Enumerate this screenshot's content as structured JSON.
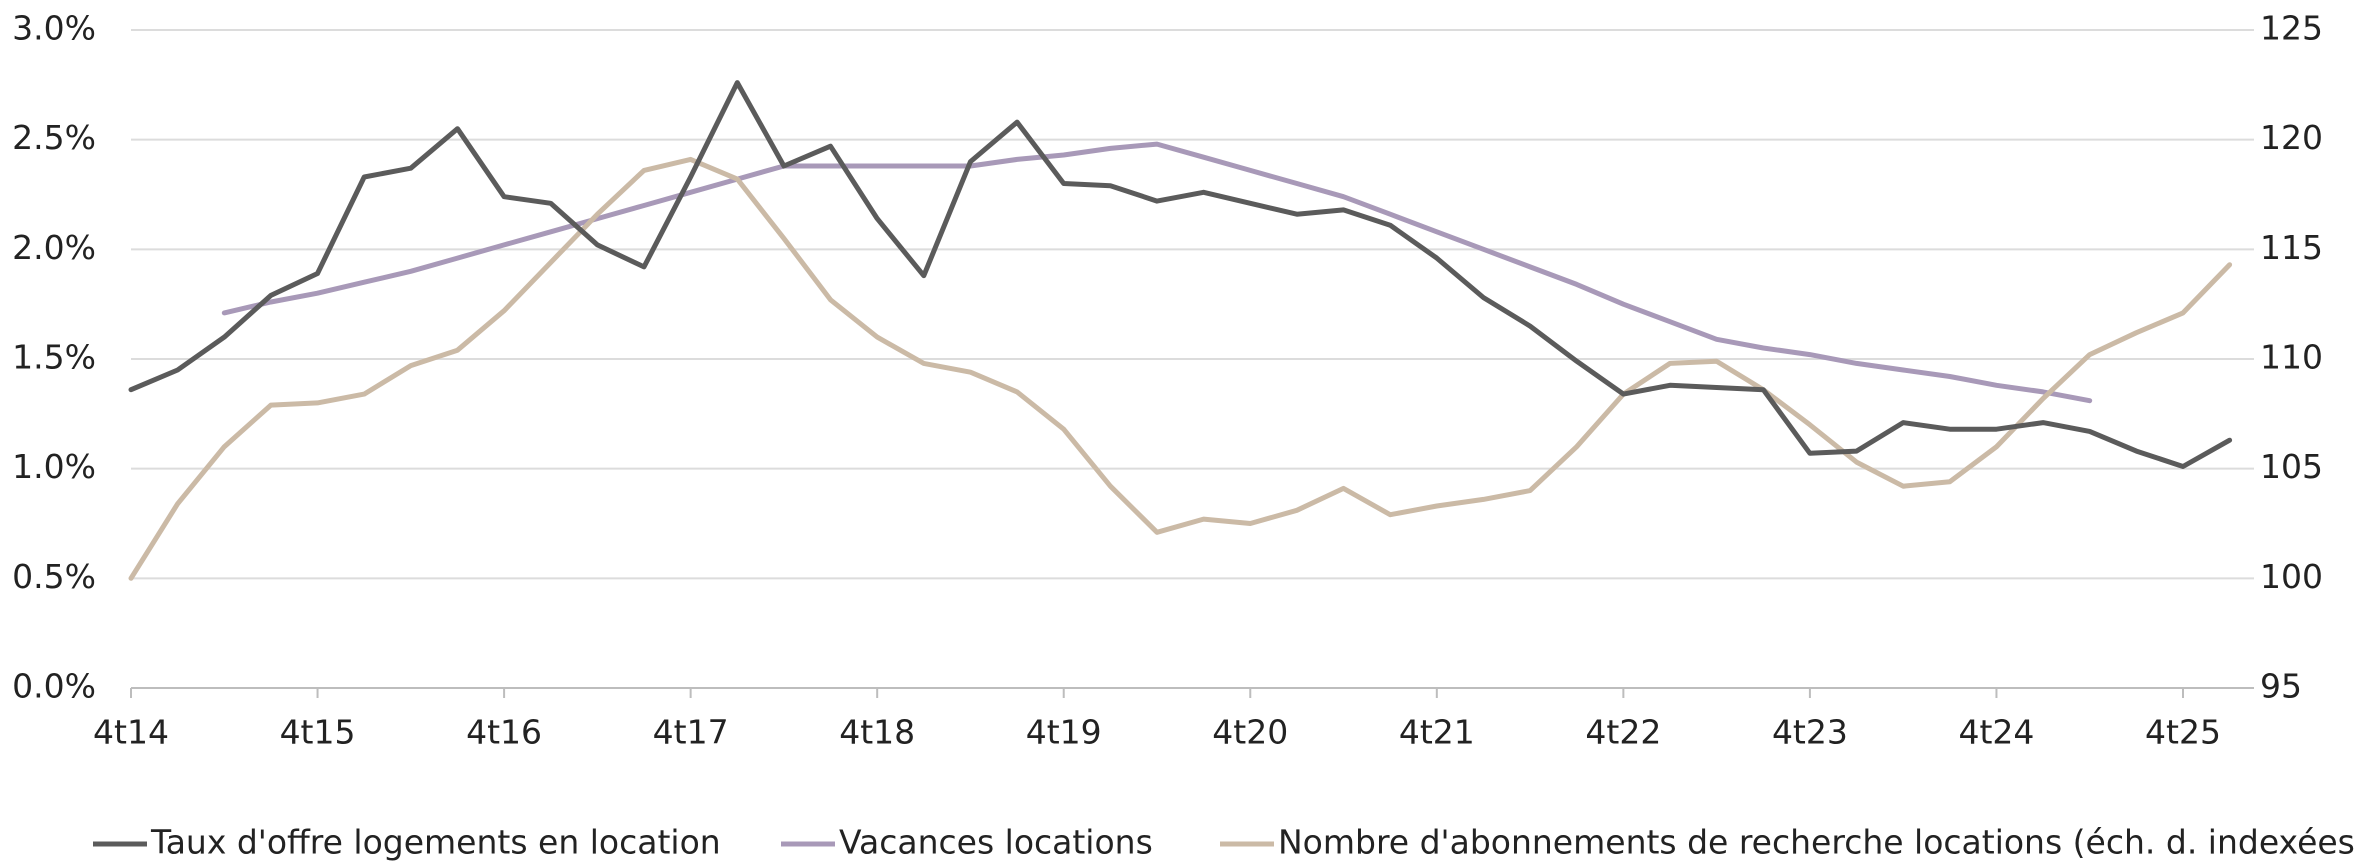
{
  "chart_data": {
    "type": "line",
    "categories": [
      "4t14",
      null,
      null,
      null,
      "4t15",
      null,
      null,
      null,
      "4t16",
      null,
      null,
      null,
      "4t17",
      null,
      null,
      null,
      "4t18",
      null,
      null,
      null,
      "4t19",
      null,
      null,
      null,
      "4t20",
      null,
      null,
      null,
      "4t21",
      null,
      null,
      null,
      "4t22",
      null,
      null,
      null,
      "4t23",
      null,
      null,
      null,
      "4t24",
      null,
      null,
      null,
      "4t25",
      null
    ],
    "series": [
      {
        "name": "Taux d'offre logements en location",
        "color": "#5b5b5b",
        "axis": "y",
        "values": [
          1.36,
          1.45,
          1.6,
          1.79,
          1.89,
          2.33,
          2.37,
          2.55,
          2.24,
          2.21,
          2.02,
          1.92,
          2.33,
          2.76,
          2.38,
          2.47,
          2.14,
          1.88,
          2.4,
          2.58,
          2.3,
          2.29,
          2.22,
          2.26,
          2.21,
          2.16,
          2.18,
          2.11,
          1.96,
          1.78,
          1.65,
          1.49,
          1.34,
          1.38,
          1.37,
          1.36,
          1.07,
          1.08,
          1.21,
          1.18,
          1.18,
          1.21,
          1.17,
          1.08,
          1.01,
          1.13
        ]
      },
      {
        "name": "Vacances locations",
        "color": "#a899b8",
        "axis": "y",
        "values": [
          null,
          null,
          1.71,
          1.76,
          1.8,
          1.85,
          1.9,
          1.96,
          2.02,
          2.08,
          2.14,
          2.2,
          2.26,
          2.32,
          2.38,
          2.38,
          2.38,
          2.38,
          2.38,
          2.41,
          2.43,
          2.46,
          2.48,
          2.42,
          2.36,
          2.3,
          2.24,
          2.16,
          2.08,
          2.0,
          1.92,
          1.84,
          1.75,
          1.67,
          1.59,
          1.55,
          1.52,
          1.48,
          1.45,
          1.42,
          1.38,
          1.35,
          1.31,
          null,
          null,
          null
        ]
      },
      {
        "name": "Nombre d'abonnements de recherche locations (éch. d. indexées)",
        "color": "#cbbaa6",
        "axis": "y2",
        "values": [
          100.0,
          103.4,
          106.0,
          107.9,
          108.0,
          108.4,
          109.7,
          110.4,
          112.2,
          114.4,
          116.6,
          118.6,
          119.1,
          118.2,
          115.5,
          112.7,
          111.0,
          109.8,
          109.4,
          108.5,
          106.8,
          104.2,
          102.1,
          102.7,
          102.5,
          103.1,
          104.1,
          102.9,
          103.3,
          103.6,
          104.0,
          106.0,
          108.4,
          109.8,
          109.9,
          108.6,
          107.0,
          105.3,
          104.2,
          104.4,
          106.0,
          108.2,
          110.2,
          111.2,
          112.1,
          114.3
        ]
      }
    ],
    "ylim": [
      0,
      3
    ],
    "yticks": [
      {
        "value": 0,
        "label": "0.0%"
      },
      {
        "value": 0.5,
        "label": "0.5%"
      },
      {
        "value": 1,
        "label": "1.0%"
      },
      {
        "value": 1.5,
        "label": "1.5%"
      },
      {
        "value": 2,
        "label": "2.0%"
      },
      {
        "value": 2.5,
        "label": "2.5%"
      },
      {
        "value": 3,
        "label": "3.0%"
      }
    ],
    "y2lim": [
      95,
      125
    ],
    "y2ticks": [
      95,
      100,
      105,
      110,
      115,
      120,
      125
    ],
    "grid": true,
    "legend": "bottom"
  }
}
